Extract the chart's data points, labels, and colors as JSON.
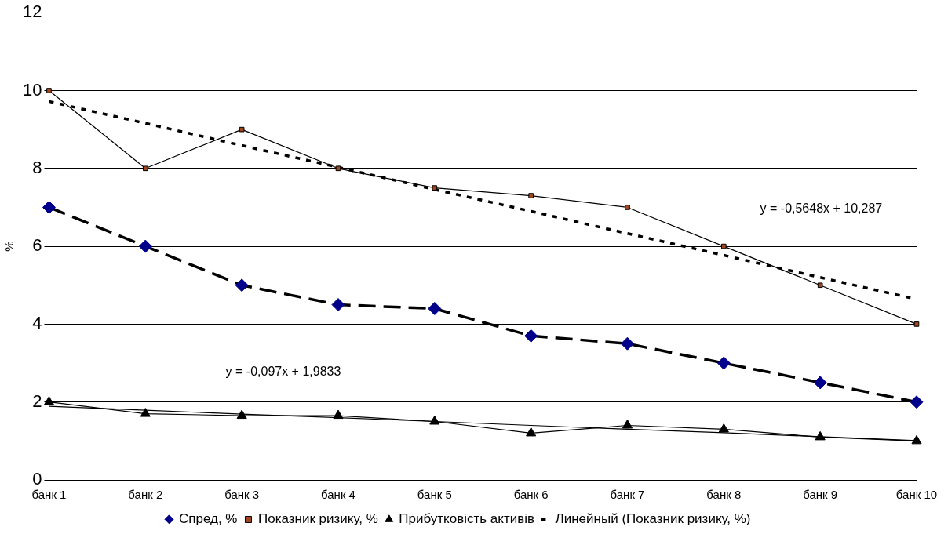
{
  "chart_data": {
    "type": "line",
    "ylabel": "%",
    "categories": [
      "банк 1",
      "банк 2",
      "банк 3",
      "банк 4",
      "банк 5",
      "банк 6",
      "банк 7",
      "банк 8",
      "банк 9",
      "банк 10"
    ],
    "ylim": [
      0,
      12
    ],
    "yticks": [
      0,
      2,
      4,
      6,
      8,
      10,
      12
    ],
    "grid": "y",
    "legend": "bottom",
    "series": [
      {
        "name": "Спред, %",
        "color": "#00008b",
        "marker": "diamond",
        "line_style": "dashed",
        "values": [
          7,
          6,
          5,
          4.5,
          4.4,
          3.7,
          3.5,
          3,
          2.5,
          2
        ]
      },
      {
        "name": "Показник ризику, %",
        "color": "#a0461e",
        "marker": "square",
        "line_style": "solid",
        "values": [
          10,
          8,
          9,
          8,
          7.5,
          7.3,
          7,
          6,
          5,
          4
        ]
      },
      {
        "name": "Прибутковість активів",
        "color": "#000000",
        "marker": "triangle",
        "line_style": "solid",
        "values": [
          2,
          1.7,
          1.65,
          1.65,
          1.5,
          1.2,
          1.4,
          1.3,
          1.1,
          1
        ]
      },
      {
        "name": "Линейный (Показник ризику, %)",
        "color": "#000000",
        "marker": "none",
        "line_style": "dotted",
        "values": [
          9.72,
          9.16,
          8.59,
          8.03,
          7.46,
          6.9,
          6.33,
          5.77,
          5.2,
          4.64
        ]
      },
      {
        "color": "#000000",
        "marker": "none",
        "line_style": "solid",
        "values": [
          1.89,
          1.79,
          1.69,
          1.6,
          1.5,
          1.4,
          1.3,
          1.21,
          1.11,
          1.01
        ]
      }
    ],
    "annotations": [
      "y = -0,5648x + 10,287",
      "y = -0,097x + 1,9833"
    ]
  }
}
